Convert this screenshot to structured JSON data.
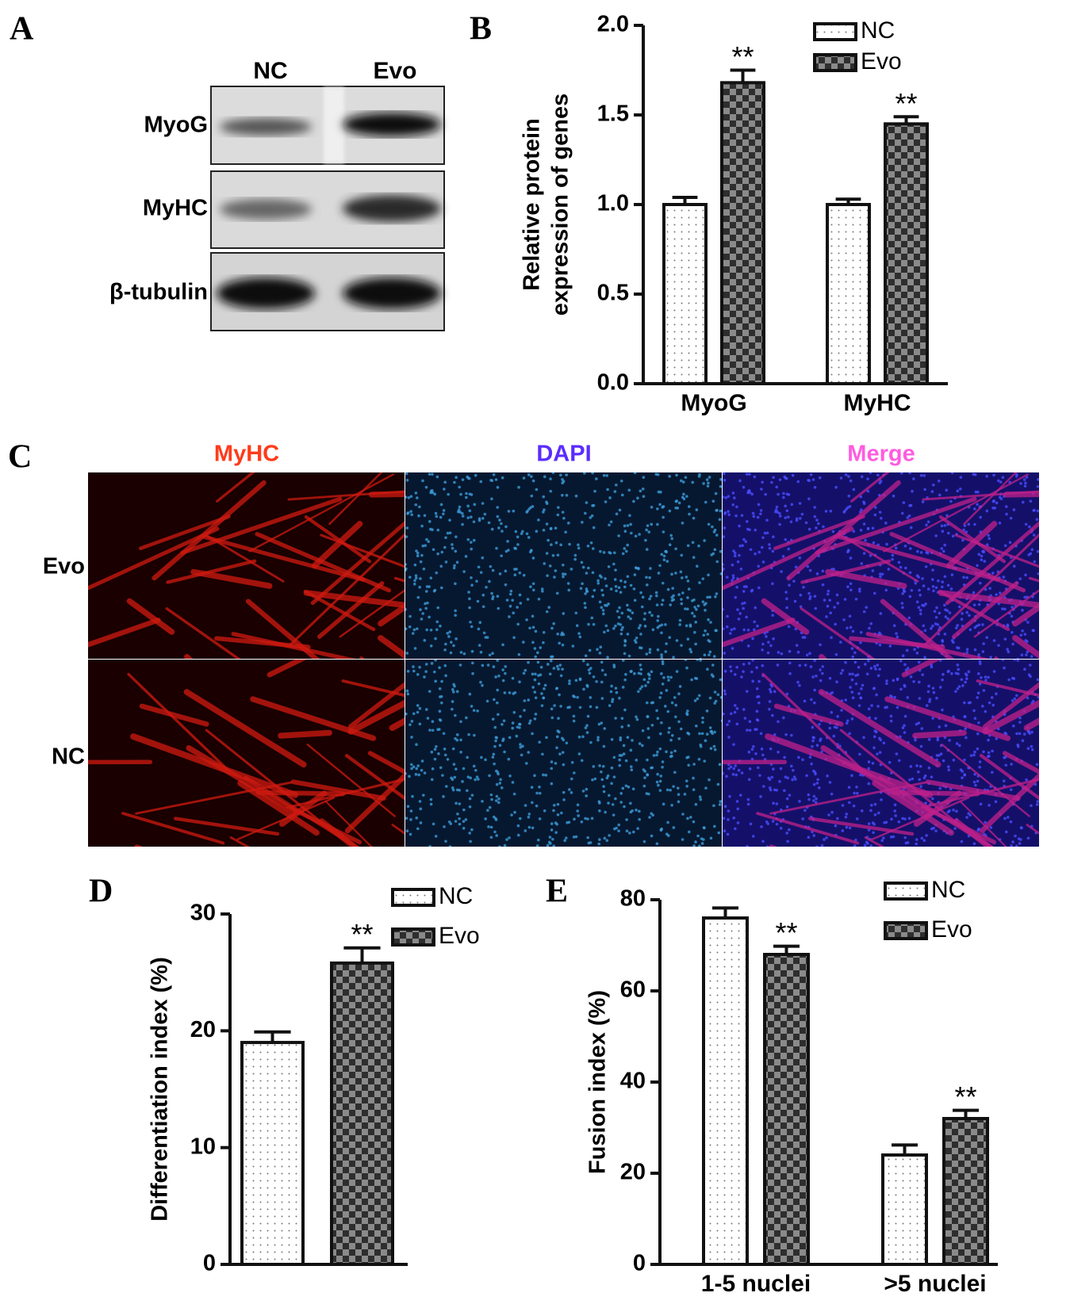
{
  "panel_labels": [
    "A",
    "B",
    "C",
    "D",
    "E"
  ],
  "blot": {
    "lanes": [
      "NC",
      "Evo"
    ],
    "rows": [
      "MyoG",
      "MyHC",
      "β-tubulin"
    ]
  },
  "images": {
    "channels": [
      "MyHC",
      "DAPI",
      "Merge"
    ],
    "rows": [
      "Evo",
      "NC"
    ]
  },
  "chart_data": [
    {
      "type": "bar",
      "ylabel": [
        "Relative protein",
        "expression of genes"
      ],
      "categories": [
        "MyoG",
        "MyHC"
      ],
      "series": [
        {
          "name": "NC",
          "pattern": "dots",
          "values": [
            1.0,
            1.0
          ],
          "errors": [
            0.04,
            0.03
          ]
        },
        {
          "name": "Evo",
          "pattern": "checker",
          "values": [
            1.68,
            1.45
          ],
          "errors": [
            0.07,
            0.04
          ],
          "annotations": [
            "**",
            "**"
          ]
        }
      ],
      "ylim": [
        0,
        2
      ],
      "yticks": [
        {
          "value": 0,
          "label": "0.0"
        },
        {
          "value": 0.5,
          "label": "0.5"
        },
        {
          "value": 1,
          "label": "1.0"
        },
        {
          "value": 1.5,
          "label": "1.5"
        },
        {
          "value": 2,
          "label": "2.0"
        }
      ],
      "legend": "upper right"
    },
    {
      "type": "bar",
      "ylabel": [
        "Differentiation index (%)"
      ],
      "categories": [
        null
      ],
      "series": [
        {
          "name": "NC",
          "pattern": "dots",
          "values": [
            19
          ],
          "errors": [
            0.9
          ]
        },
        {
          "name": "Evo",
          "pattern": "checker",
          "values": [
            25.8
          ],
          "errors": [
            1.3
          ],
          "annotations": [
            "**"
          ]
        }
      ],
      "ylim": [
        0,
        30
      ],
      "yticks": [
        0,
        10,
        20,
        30
      ],
      "legend": "upper right"
    },
    {
      "type": "bar",
      "ylabel": [
        "Fusion index (%)"
      ],
      "categories": [
        "1-5 nuclei",
        ">5 nuclei"
      ],
      "series": [
        {
          "name": "NC",
          "pattern": "dots",
          "values": [
            76,
            24
          ],
          "errors": [
            2.2,
            2.2
          ]
        },
        {
          "name": "Evo",
          "pattern": "checker",
          "values": [
            68,
            32
          ],
          "errors": [
            1.8,
            1.8
          ],
          "annotations": [
            "**",
            "**"
          ]
        }
      ],
      "ylim": [
        0,
        80
      ],
      "yticks": [
        0,
        20,
        40,
        60,
        80
      ],
      "legend": "upper right"
    }
  ]
}
